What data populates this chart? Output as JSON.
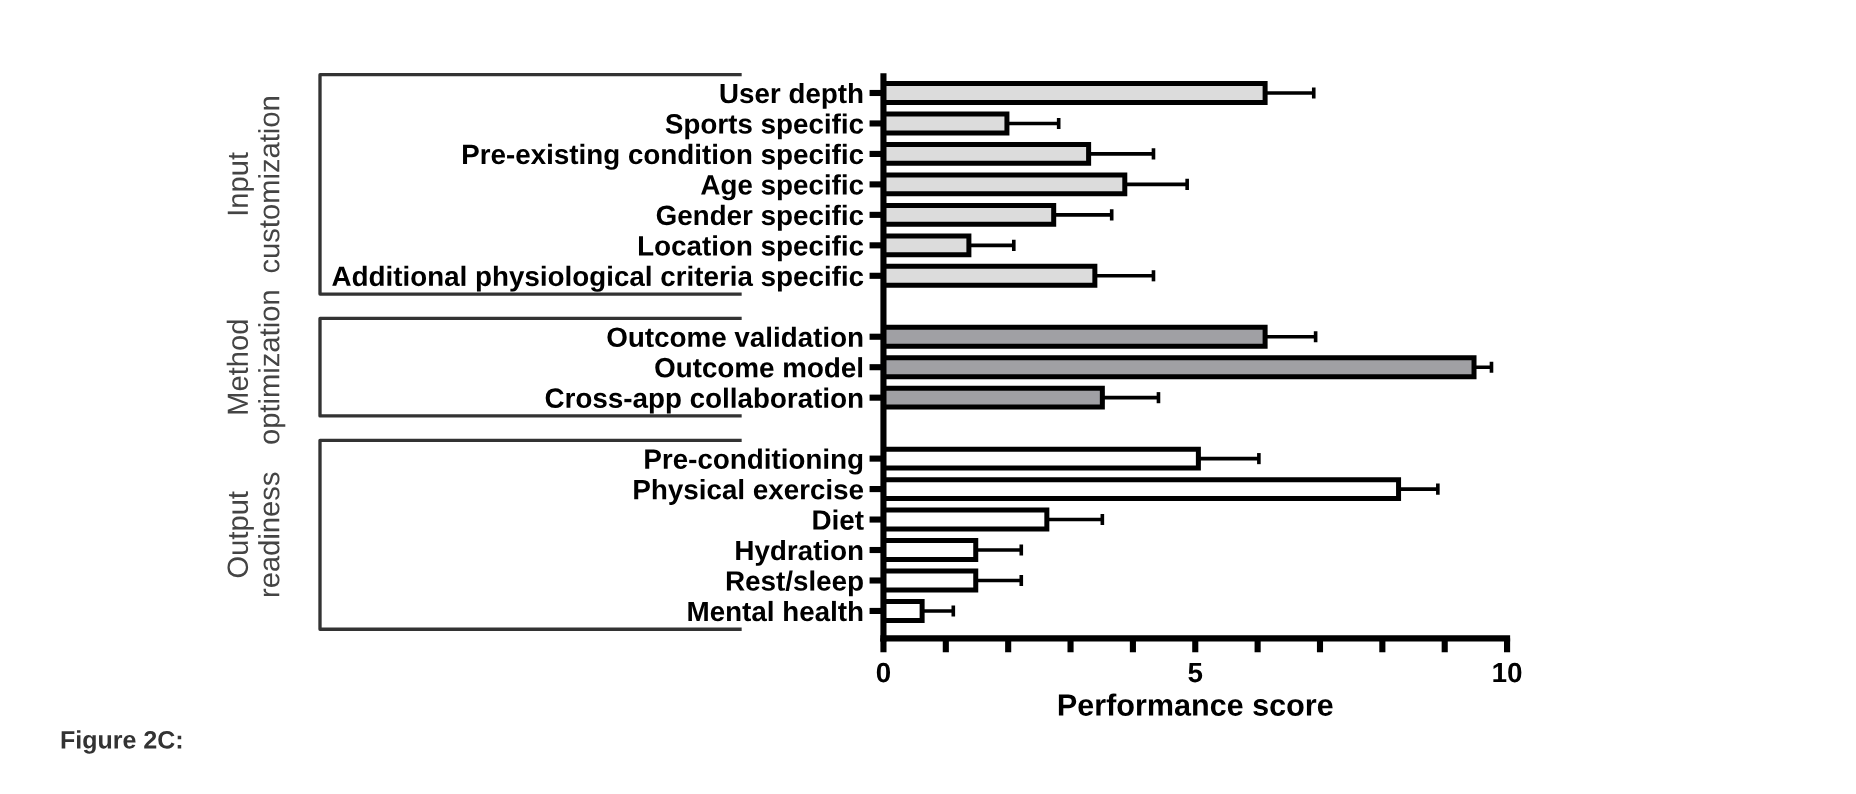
{
  "chart_data": {
    "type": "bar",
    "orientation": "horizontal",
    "categories": [
      "User depth",
      "Sports specific",
      "Pre-existing condition specific",
      "Age specific",
      "Gender specific",
      "Location specific",
      "Additional physiological criteria specific",
      null,
      "Outcome validation",
      "Outcome model",
      "Cross-app collaboration",
      null,
      "Pre-conditioning",
      "Physical exercise",
      "Diet",
      "Hydration",
      "Rest/sleep",
      "Mental health"
    ],
    "series": [
      {
        "color": "#dcdcdc",
        "values": [
          6.12,
          1.98,
          3.29,
          3.87,
          2.73,
          1.37,
          3.39,
          null,
          null,
          null,
          null,
          null,
          null,
          null,
          null,
          null,
          null,
          null
        ],
        "errors": [
          0.78,
          0.83,
          1.04,
          1.0,
          0.93,
          0.72,
          0.94,
          null,
          null,
          null,
          null,
          null,
          null,
          null,
          null,
          null,
          null,
          null
        ]
      },
      {
        "color": "#a0a0a4",
        "values": [
          null,
          null,
          null,
          null,
          null,
          null,
          null,
          null,
          6.12,
          9.47,
          3.51,
          null,
          null,
          null,
          null,
          null,
          null,
          null
        ],
        "errors": [
          null,
          null,
          null,
          null,
          null,
          null,
          null,
          null,
          0.81,
          0.28,
          0.9,
          null,
          null,
          null,
          null,
          null,
          null,
          null
        ]
      },
      {
        "color": "#ffffff",
        "values": [
          null,
          null,
          null,
          null,
          null,
          null,
          null,
          null,
          null,
          null,
          null,
          null,
          5.05,
          8.26,
          2.62,
          1.48,
          1.48,
          0.62
        ],
        "errors": [
          null,
          null,
          null,
          null,
          null,
          null,
          null,
          null,
          null,
          null,
          null,
          null,
          0.97,
          0.63,
          0.89,
          0.73,
          0.73,
          0.5
        ]
      }
    ],
    "xlabel": "Performance score",
    "xlim": [
      0,
      10
    ],
    "xticks": [
      0,
      {
        "value": 1,
        "label": null
      },
      {
        "value": 2,
        "label": null
      },
      {
        "value": 3,
        "label": null
      },
      {
        "value": 4,
        "label": null
      },
      5,
      {
        "value": 6,
        "label": null
      },
      {
        "value": 7,
        "label": null
      },
      {
        "value": 8,
        "label": null
      },
      {
        "value": 9,
        "label": null
      },
      10
    ],
    "annotations": [
      "Input\ncustomization",
      "Method\noptimization",
      "Output\nreadiness",
      "Figure 2C:"
    ],
    "grid": false,
    "legend": false
  }
}
